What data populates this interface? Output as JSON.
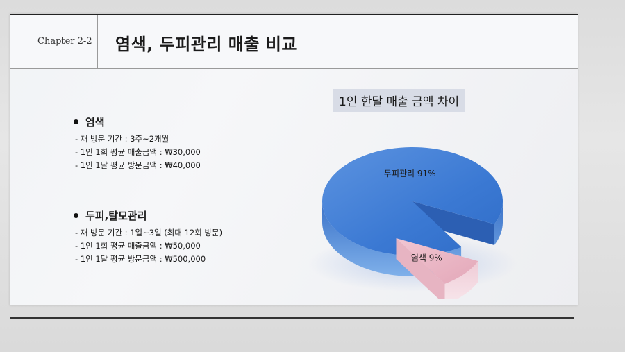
{
  "header": {
    "chapter": "Chapter 2-2",
    "title": "염색, 두피관리 매출 비교"
  },
  "sections": [
    {
      "heading": "염색",
      "lines": [
        "- 재 방문 기간 : 3주~2개월",
        "- 1인 1회 평균 매출금액 : ₩30,000",
        "- 1인 1달 평균 방문금액 : ₩40,000"
      ]
    },
    {
      "heading": "두피,탈모관리",
      "lines": [
        "- 재 방문 기간 : 1일~3일 (최대 12회 방문)",
        "- 1인 1회 평균 매출금액 : ₩50,000",
        "- 1인 1달 평균 방문금액 : ₩500,000"
      ]
    }
  ],
  "chart_data": {
    "type": "pie",
    "title": "1인 한달 매출 금액 차이",
    "slices": [
      {
        "name": "두피관리",
        "value": 91,
        "label": "두피관리  91%",
        "color": "#3f7fd6"
      },
      {
        "name": "염색",
        "value": 9,
        "label": "염색  9%",
        "color": "#e9b9c6"
      }
    ],
    "3d": true,
    "exploded": "염색"
  }
}
